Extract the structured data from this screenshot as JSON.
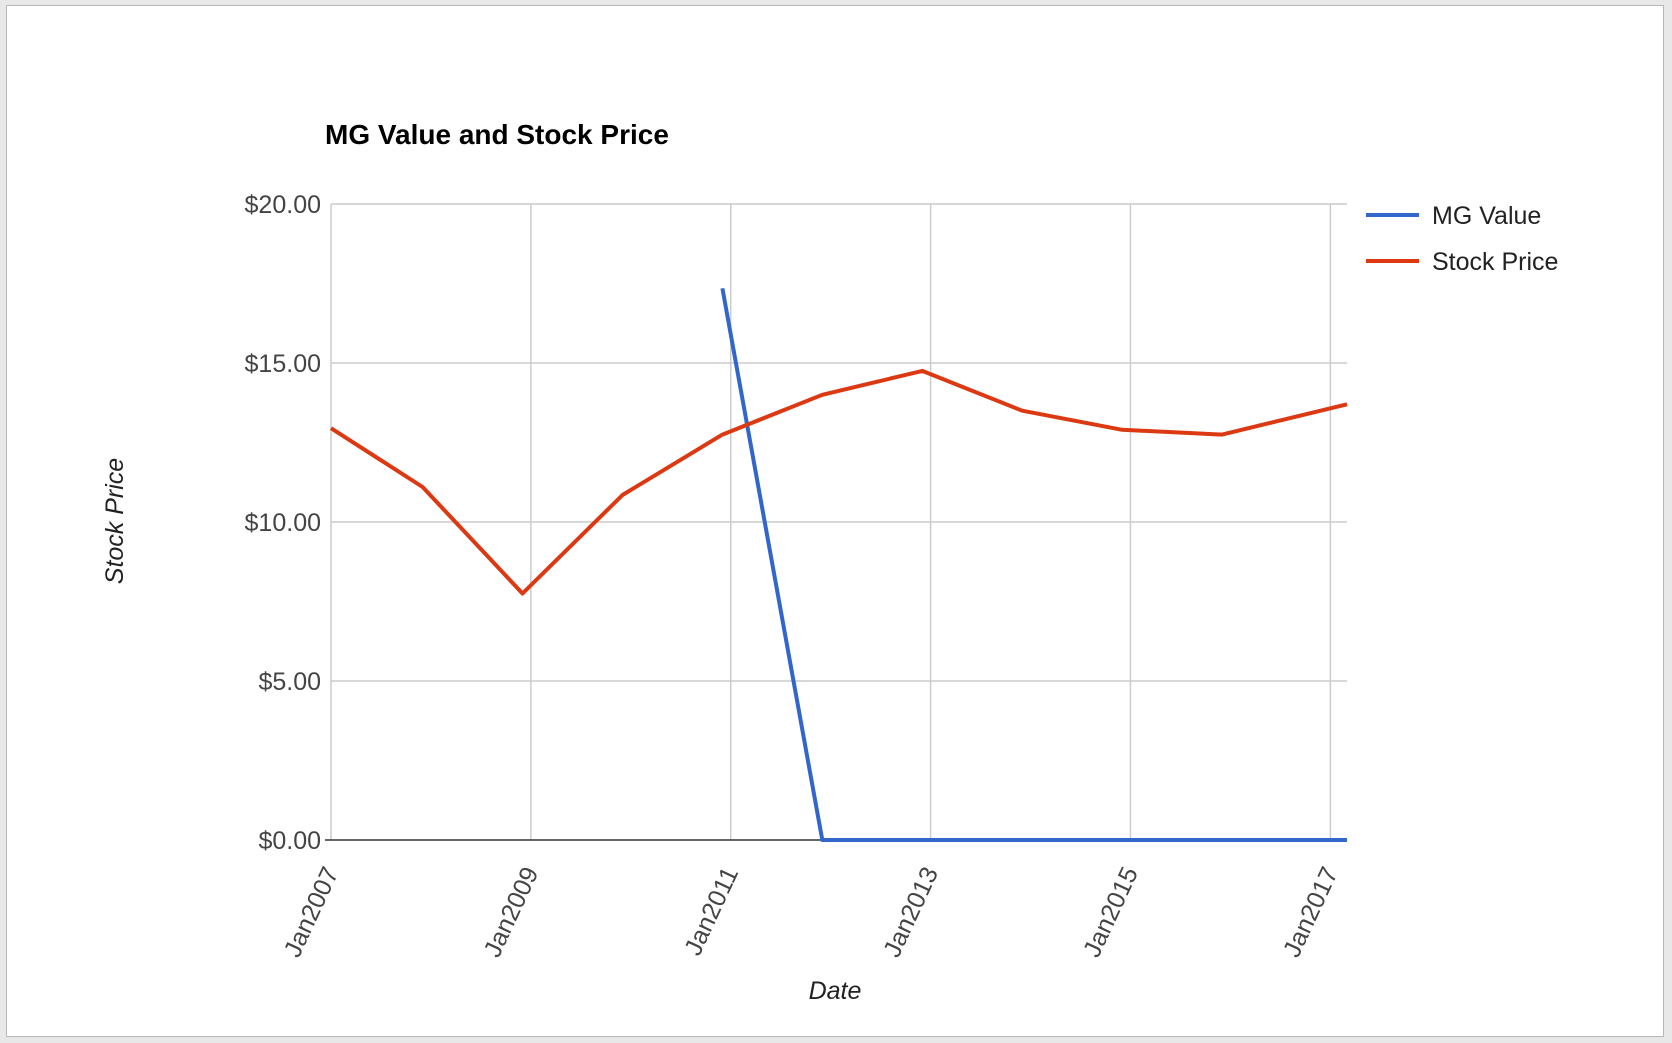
{
  "chart_data": {
    "type": "line",
    "title": "MG Value and Stock Price",
    "xlabel": "Date",
    "ylabel": "Stock Price",
    "x_ticks": [
      "Jan2007",
      "Jan2009",
      "Jan2011",
      "Jan2013",
      "Jan2015",
      "Jan2017"
    ],
    "y_ticks": [
      "$0.00",
      "$5.00",
      "$10.00",
      "$15.00",
      "$20.00"
    ],
    "ylim": [
      0,
      20
    ],
    "xlim": [
      "2007-01",
      "2017-03"
    ],
    "grid": true,
    "legend": "right",
    "series": [
      {
        "name": "MG Value",
        "color": "#3366cc",
        "points": [
          {
            "x": "2010-12",
            "y": 17.35
          },
          {
            "x": "2011-12",
            "y": 0
          },
          {
            "x": "2012-12",
            "y": 0
          },
          {
            "x": "2013-12",
            "y": 0
          },
          {
            "x": "2014-12",
            "y": 0
          },
          {
            "x": "2015-12",
            "y": 0
          },
          {
            "x": "2017-03",
            "y": 0
          }
        ]
      },
      {
        "name": "Stock Price",
        "color": "#dc3912",
        "points": [
          {
            "x": "2007-01",
            "y": 12.95
          },
          {
            "x": "2007-12",
            "y": 11.1
          },
          {
            "x": "2008-12",
            "y": 7.75
          },
          {
            "x": "2009-12",
            "y": 10.85
          },
          {
            "x": "2010-12",
            "y": 12.75
          },
          {
            "x": "2011-12",
            "y": 14.0
          },
          {
            "x": "2012-12",
            "y": 14.75
          },
          {
            "x": "2013-12",
            "y": 13.5
          },
          {
            "x": "2014-12",
            "y": 12.9
          },
          {
            "x": "2015-12",
            "y": 12.75
          },
          {
            "x": "2017-03",
            "y": 13.7
          }
        ]
      }
    ]
  }
}
